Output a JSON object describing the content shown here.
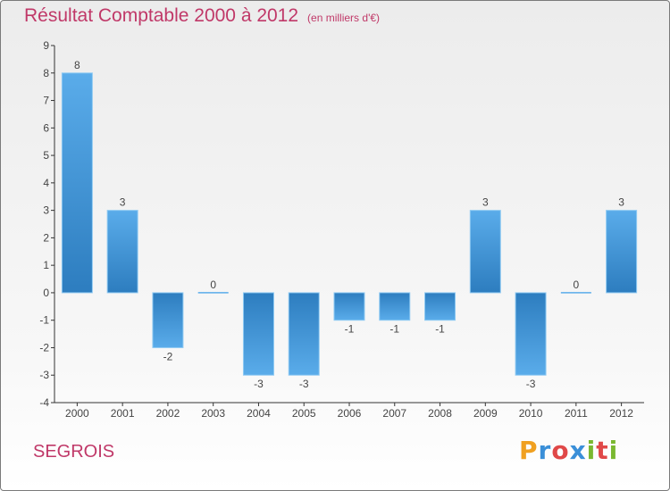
{
  "chart_data": {
    "type": "bar",
    "title": "Résultat Comptable 2000 à 2012",
    "subtitle": "(en milliers d'€)",
    "categories": [
      "2000",
      "2001",
      "2002",
      "2003",
      "2004",
      "2005",
      "2006",
      "2007",
      "2008",
      "2009",
      "2010",
      "2011",
      "2012"
    ],
    "values": [
      8,
      3,
      -2,
      0,
      -3,
      -3,
      -1,
      -1,
      -1,
      3,
      -3,
      0,
      3
    ],
    "ylim": [
      -4,
      9
    ],
    "yticks": [
      -4,
      -3,
      -2,
      -1,
      0,
      1,
      2,
      3,
      4,
      5,
      6,
      7,
      8,
      9
    ],
    "xlabel": "",
    "ylabel": "",
    "colors": {
      "bar_dark": "#2d7dbf",
      "bar_light": "#5aacea",
      "title": "#c03868"
    }
  },
  "footer": {
    "commune": "SEGROIS"
  },
  "logo": {
    "letters": [
      "P",
      "r",
      "o",
      "x",
      "i",
      "t",
      "i"
    ]
  }
}
